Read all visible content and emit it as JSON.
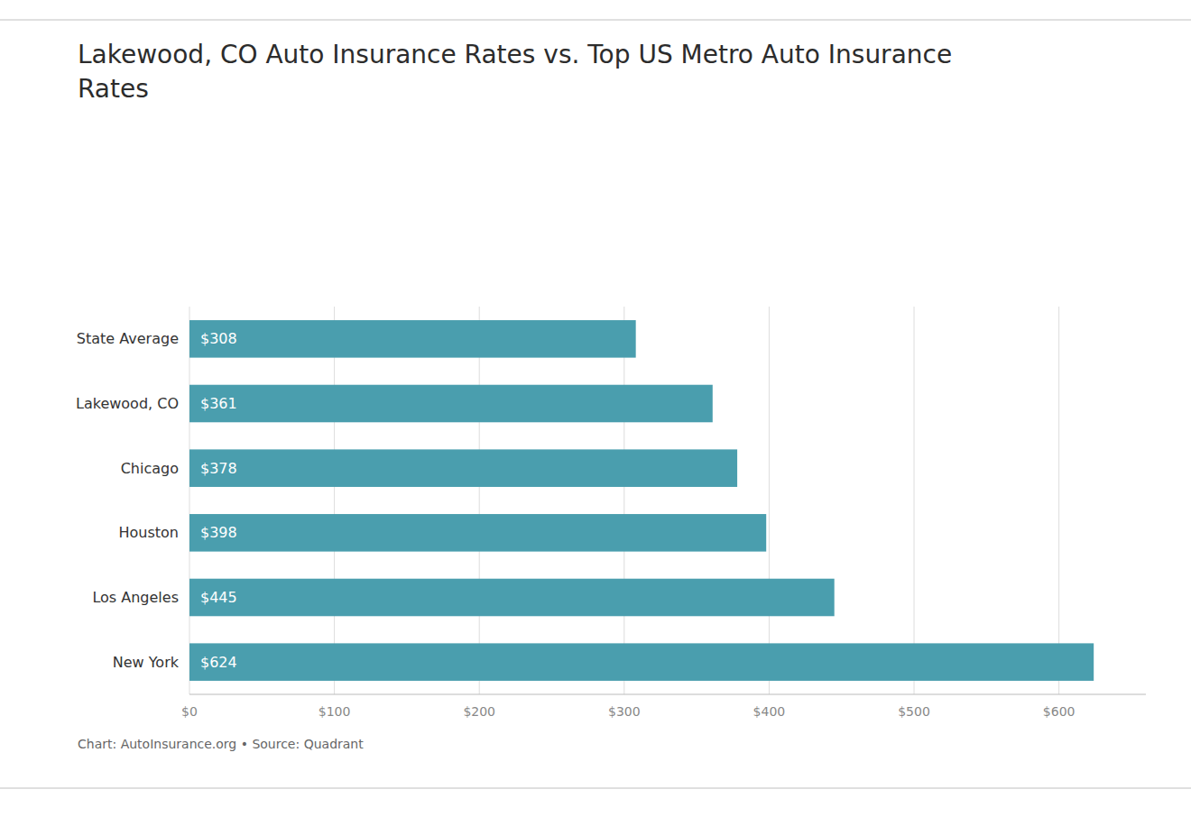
{
  "chart_data": {
    "type": "bar",
    "orientation": "horizontal",
    "title": "Lakewood, CO Auto Insurance Rates vs. Top US Metro Auto Insurance\nRates",
    "categories": [
      "New York",
      "Los Angeles",
      "Houston",
      "Chicago",
      "Lakewood, CO",
      "State Average"
    ],
    "values": [
      624,
      445,
      398,
      378,
      361,
      308
    ],
    "value_labels": [
      "$624",
      "$445",
      "$398",
      "$378",
      "$361",
      "$308"
    ],
    "data_labels": true,
    "color": "#4a9eae",
    "xlim": [
      0,
      660
    ],
    "xticks": [
      {
        "value": 0,
        "label": "$0"
      },
      {
        "value": 100,
        "label": "$100"
      },
      {
        "value": 200,
        "label": "$200"
      },
      {
        "value": 300,
        "label": "$300"
      },
      {
        "value": 400,
        "label": "$400"
      },
      {
        "value": 500,
        "label": "$500"
      },
      {
        "value": 600,
        "label": "$600"
      }
    ],
    "grid": true,
    "annotations": [
      "Chart: AutoInsurance.org • Source: Quadrant"
    ]
  }
}
